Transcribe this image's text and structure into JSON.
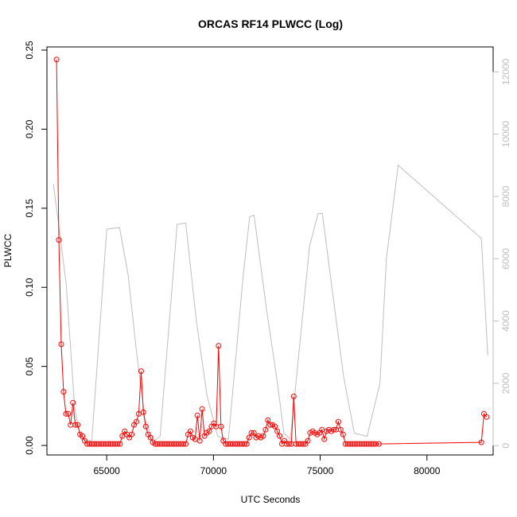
{
  "chart_data": {
    "type": "line",
    "title": "ORCAS RF14 PLWCC (Log)",
    "xlabel": "UTC Seconds",
    "ylabel": "PLWCC",
    "xlim": [
      62200,
      83100
    ],
    "ylim": [
      -0.006,
      0.252
    ],
    "y2lim": [
      -300,
      12800
    ],
    "x_ticks": [
      65000,
      70000,
      75000,
      80000
    ],
    "y_ticks": [
      0.0,
      0.05,
      0.1,
      0.15,
      0.2,
      0.25
    ],
    "y_tick_labels": [
      "0.00",
      "0.05",
      "0.10",
      "0.15",
      "0.20",
      "0.25"
    ],
    "y2_ticks": [
      0,
      2000,
      4000,
      6000,
      8000,
      10000,
      12000
    ],
    "y2_tick_labels": [
      "0",
      "2000",
      "4000",
      "6000",
      "8000",
      "10000",
      "12000"
    ],
    "grid": false,
    "colors": {
      "plwcc": "#ff0000",
      "altitude": "#bebebe",
      "axis": "#000000"
    },
    "series": [
      {
        "role": "plwcc",
        "axis": "left",
        "style": "line+open-circles",
        "points": [
          [
            62650,
            0.244
          ],
          [
            62760,
            0.13
          ],
          [
            62870,
            0.064
          ],
          [
            62980,
            0.034
          ],
          [
            63090,
            0.02
          ],
          [
            63200,
            0.02
          ],
          [
            63310,
            0.013
          ],
          [
            63420,
            0.027
          ],
          [
            63530,
            0.013
          ],
          [
            63640,
            0.013
          ],
          [
            63750,
            0.007
          ],
          [
            63860,
            0.006
          ],
          [
            63970,
            0.003
          ],
          [
            64080,
            0.001
          ],
          [
            64190,
            0.001
          ],
          [
            64300,
            0.001
          ],
          [
            64410,
            0.001
          ],
          [
            64520,
            0.001
          ],
          [
            64630,
            0.001
          ],
          [
            64740,
            0.001
          ],
          [
            64850,
            0.001
          ],
          [
            64960,
            0.001
          ],
          [
            65070,
            0.001
          ],
          [
            65180,
            0.001
          ],
          [
            65290,
            0.001
          ],
          [
            65400,
            0.001
          ],
          [
            65510,
            0.001
          ],
          [
            65620,
            0.001
          ],
          [
            65730,
            0.006
          ],
          [
            65840,
            0.009
          ],
          [
            65950,
            0.007
          ],
          [
            66060,
            0.005
          ],
          [
            66170,
            0.007
          ],
          [
            66280,
            0.013
          ],
          [
            66390,
            0.015
          ],
          [
            66500,
            0.02
          ],
          [
            66610,
            0.047
          ],
          [
            66720,
            0.021
          ],
          [
            66830,
            0.012
          ],
          [
            66940,
            0.007
          ],
          [
            67050,
            0.005
          ],
          [
            67160,
            0.002
          ],
          [
            67270,
            0.001
          ],
          [
            67380,
            0.001
          ],
          [
            67490,
            0.001
          ],
          [
            67600,
            0.001
          ],
          [
            67710,
            0.001
          ],
          [
            67820,
            0.001
          ],
          [
            67930,
            0.001
          ],
          [
            68040,
            0.001
          ],
          [
            68150,
            0.001
          ],
          [
            68260,
            0.001
          ],
          [
            68370,
            0.001
          ],
          [
            68480,
            0.001
          ],
          [
            68590,
            0.001
          ],
          [
            68700,
            0.001
          ],
          [
            68810,
            0.007
          ],
          [
            68920,
            0.009
          ],
          [
            69030,
            0.005
          ],
          [
            69140,
            0.004
          ],
          [
            69250,
            0.019
          ],
          [
            69360,
            0.003
          ],
          [
            69470,
            0.023
          ],
          [
            69580,
            0.006
          ],
          [
            69690,
            0.008
          ],
          [
            69800,
            0.009
          ],
          [
            69910,
            0.012
          ],
          [
            70020,
            0.014
          ],
          [
            70130,
            0.012
          ],
          [
            70240,
            0.063
          ],
          [
            70350,
            0.012
          ],
          [
            70460,
            0.003
          ],
          [
            70570,
            0.001
          ],
          [
            70680,
            0.001
          ],
          [
            70790,
            0.001
          ],
          [
            70900,
            0.001
          ],
          [
            71010,
            0.001
          ],
          [
            71120,
            0.001
          ],
          [
            71230,
            0.001
          ],
          [
            71340,
            0.001
          ],
          [
            71450,
            0.001
          ],
          [
            71560,
            0.001
          ],
          [
            71670,
            0.005
          ],
          [
            71780,
            0.008
          ],
          [
            71890,
            0.008
          ],
          [
            72000,
            0.005
          ],
          [
            72110,
            0.006
          ],
          [
            72220,
            0.005
          ],
          [
            72330,
            0.006
          ],
          [
            72440,
            0.01
          ],
          [
            72550,
            0.016
          ],
          [
            72660,
            0.013
          ],
          [
            72770,
            0.013
          ],
          [
            72880,
            0.012
          ],
          [
            72990,
            0.009
          ],
          [
            73100,
            0.006
          ],
          [
            73210,
            0.001
          ],
          [
            73320,
            0.003
          ],
          [
            73430,
            0.001
          ],
          [
            73540,
            0.001
          ],
          [
            73650,
            0.001
          ],
          [
            73760,
            0.031
          ],
          [
            73870,
            0.001
          ],
          [
            73980,
            0.001
          ],
          [
            74090,
            0.001
          ],
          [
            74200,
            0.001
          ],
          [
            74310,
            0.001
          ],
          [
            74420,
            0.003
          ],
          [
            74530,
            0.008
          ],
          [
            74640,
            0.009
          ],
          [
            74750,
            0.008
          ],
          [
            74860,
            0.007
          ],
          [
            74970,
            0.008
          ],
          [
            75080,
            0.01
          ],
          [
            75190,
            0.004
          ],
          [
            75300,
            0.009
          ],
          [
            75410,
            0.01
          ],
          [
            75520,
            0.009
          ],
          [
            75630,
            0.01
          ],
          [
            75740,
            0.01
          ],
          [
            75850,
            0.015
          ],
          [
            75960,
            0.01
          ],
          [
            76070,
            0.007
          ],
          [
            76180,
            0.001
          ],
          [
            76290,
            0.001
          ],
          [
            76400,
            0.001
          ],
          [
            76510,
            0.001
          ],
          [
            76620,
            0.001
          ],
          [
            76730,
            0.001
          ],
          [
            76840,
            0.001
          ],
          [
            76950,
            0.001
          ],
          [
            77060,
            0.001
          ],
          [
            77170,
            0.001
          ],
          [
            77280,
            0.001
          ],
          [
            77390,
            0.001
          ],
          [
            77500,
            0.001
          ],
          [
            77610,
            0.001
          ],
          [
            77750,
            0.001
          ],
          [
            82550,
            0.002
          ],
          [
            82670,
            0.02
          ],
          [
            82800,
            0.018
          ]
        ]
      },
      {
        "role": "altitude",
        "axis": "right",
        "style": "line",
        "points": [
          [
            62500,
            8400
          ],
          [
            63100,
            5200
          ],
          [
            63500,
            1200
          ],
          [
            63800,
            200
          ],
          [
            64300,
            150
          ],
          [
            65000,
            6950
          ],
          [
            65600,
            7000
          ],
          [
            66000,
            5500
          ],
          [
            66400,
            3000
          ],
          [
            66800,
            800
          ],
          [
            67200,
            150
          ],
          [
            67500,
            300
          ],
          [
            68300,
            7100
          ],
          [
            68700,
            7150
          ],
          [
            69200,
            4000
          ],
          [
            69700,
            1600
          ],
          [
            70200,
            300
          ],
          [
            70700,
            200
          ],
          [
            71400,
            5500
          ],
          [
            71700,
            7350
          ],
          [
            71900,
            7400
          ],
          [
            72500,
            4300
          ],
          [
            73000,
            2000
          ],
          [
            73300,
            400
          ],
          [
            73600,
            200
          ],
          [
            74500,
            6400
          ],
          [
            74900,
            7450
          ],
          [
            75100,
            7450
          ],
          [
            75600,
            4800
          ],
          [
            76100,
            2200
          ],
          [
            76600,
            400
          ],
          [
            77200,
            300
          ],
          [
            77800,
            2000
          ],
          [
            78100,
            6000
          ],
          [
            78650,
            9000
          ],
          [
            82550,
            6650
          ],
          [
            82850,
            2900
          ]
        ]
      }
    ]
  }
}
